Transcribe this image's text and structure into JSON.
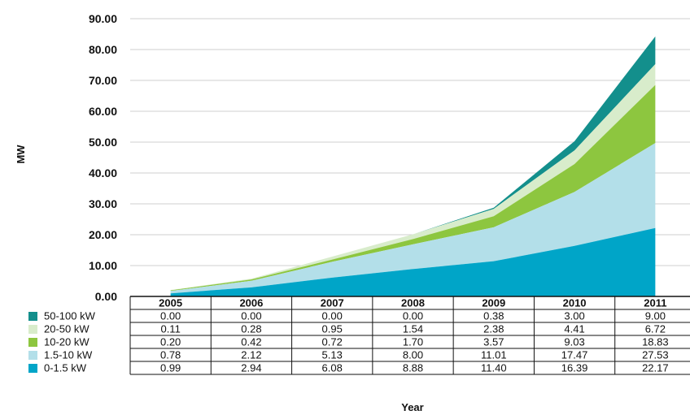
{
  "chart_data": {
    "type": "area",
    "stacked": true,
    "title": "",
    "xlabel": "Year",
    "ylabel": "MW",
    "ylim": [
      0,
      90
    ],
    "y_ticks": [
      "0.00",
      "10.00",
      "20.00",
      "30.00",
      "40.00",
      "50.00",
      "60.00",
      "70.00",
      "80.00",
      "90.00"
    ],
    "grid": true,
    "legend_placement": "left of data table",
    "categories": [
      "2005",
      "2006",
      "2007",
      "2008",
      "2009",
      "2010",
      "2011"
    ],
    "series": [
      {
        "name": "50-100 kW",
        "color": "#138f8c",
        "values": [
          0.0,
          0.0,
          0.0,
          0.0,
          0.38,
          3.0,
          9.0
        ],
        "labels": [
          "0.00",
          "0.00",
          "0.00",
          "0.00",
          "0.38",
          "3.00",
          "9.00"
        ]
      },
      {
        "name": "20-50 kW",
        "color": "#d8eccb",
        "values": [
          0.11,
          0.28,
          0.95,
          1.54,
          2.38,
          4.41,
          6.72
        ],
        "labels": [
          "0.11",
          "0.28",
          "0.95",
          "1.54",
          "2.38",
          "4.41",
          "6.72"
        ]
      },
      {
        "name": "10-20 kW",
        "color": "#8dc63f",
        "values": [
          0.2,
          0.42,
          0.72,
          1.7,
          3.57,
          9.03,
          18.83
        ],
        "labels": [
          "0.20",
          "0.42",
          "0.72",
          "1.70",
          "3.57",
          "9.03",
          "18.83"
        ]
      },
      {
        "name": "1.5-10 kW",
        "color": "#b3dfe9",
        "values": [
          0.78,
          2.12,
          5.13,
          8.0,
          11.01,
          17.47,
          27.53
        ],
        "labels": [
          "0.78",
          "2.12",
          "5.13",
          "8.00",
          "11.01",
          "17.47",
          "27.53"
        ]
      },
      {
        "name": "0-1.5 kW",
        "color": "#00a5c8",
        "values": [
          0.99,
          2.94,
          6.08,
          8.88,
          11.4,
          16.39,
          22.17
        ],
        "labels": [
          "0.99",
          "2.94",
          "6.08",
          "8.88",
          "11.40",
          "16.39",
          "22.17"
        ]
      }
    ]
  }
}
